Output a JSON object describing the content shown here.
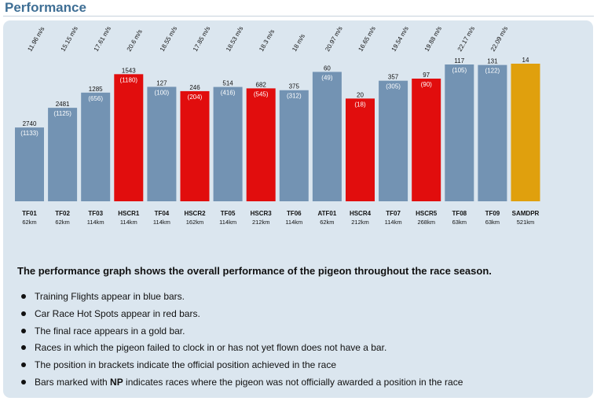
{
  "page": {
    "title": "Performance"
  },
  "chart_data": {
    "type": "bar",
    "categories": [
      "TF01",
      "TF02",
      "TF03",
      "HSCR1",
      "TF04",
      "HSCR2",
      "TF05",
      "HSCR3",
      "TF06",
      "ATF01",
      "HSCR4",
      "TF07",
      "HSCR5",
      "TF08",
      "TF09",
      "SAMDPR"
    ],
    "distances": [
      "62km",
      "62km",
      "114km",
      "114km",
      "114km",
      "162km",
      "114km",
      "212km",
      "114km",
      "62km",
      "212km",
      "114km",
      "268km",
      "63km",
      "63km",
      "521km"
    ],
    "speeds": [
      "11.96 m/s",
      "15.15 m/s",
      "17.61 m/s",
      "20.6 m/s",
      "18.55 m/s",
      "17.85 m/s",
      "18.53 m/s",
      "18.3 m/s",
      "18 m/s",
      "20.97 m/s",
      "16.65 m/s",
      "19.54 m/s",
      "19.88 m/s",
      "22.17 m/s",
      "22.09 m/s",
      ""
    ],
    "series": [
      {
        "values": [
          11.96,
          15.15,
          17.61,
          20.6,
          18.55,
          17.85,
          18.53,
          18.3,
          18,
          20.97,
          16.65,
          19.54,
          19.88,
          22.17,
          22.09,
          22.3
        ]
      }
    ],
    "positions": [
      "2740",
      "2481",
      "1285",
      "1543",
      "127",
      "246",
      "514",
      "682",
      "375",
      "60",
      "20",
      "357",
      "97",
      "117",
      "131",
      "14"
    ],
    "official_positions": [
      "(1133)",
      "(1125)",
      "(656)",
      "(1180)",
      "(100)",
      "(204)",
      "(416)",
      "(545)",
      "(312)",
      "(49)",
      "(18)",
      "(305)",
      "(90)",
      "(105)",
      "(122)",
      ""
    ],
    "kinds": [
      "training",
      "training",
      "training",
      "hotspot",
      "training",
      "hotspot",
      "training",
      "hotspot",
      "training",
      "training",
      "hotspot",
      "training",
      "hotspot",
      "training",
      "training",
      "final"
    ],
    "colors": {
      "training": "#7393b3",
      "hotspot": "#e10d0d",
      "final": "#e0a00d"
    },
    "ylim": [
      0,
      22.3
    ],
    "xlabel": "",
    "ylabel": "",
    "grid": false
  },
  "description": {
    "heading": "The performance graph shows the overall performance of the pigeon throughout the race season.",
    "bullets": [
      "Training Flights appear in blue bars.",
      "Car Race Hot Spots appear in red bars.",
      "The final race appears in a gold bar.",
      "Races in which the pigeon failed to clock in or has not yet flown does not have a bar.",
      "The position in brackets indicate the official position achieved in the race"
    ],
    "last_bullet": {
      "prefix": "Bars marked with ",
      "bold": "NP",
      "suffix": " indicates races where the pigeon was not officially awarded a position in the race"
    }
  }
}
